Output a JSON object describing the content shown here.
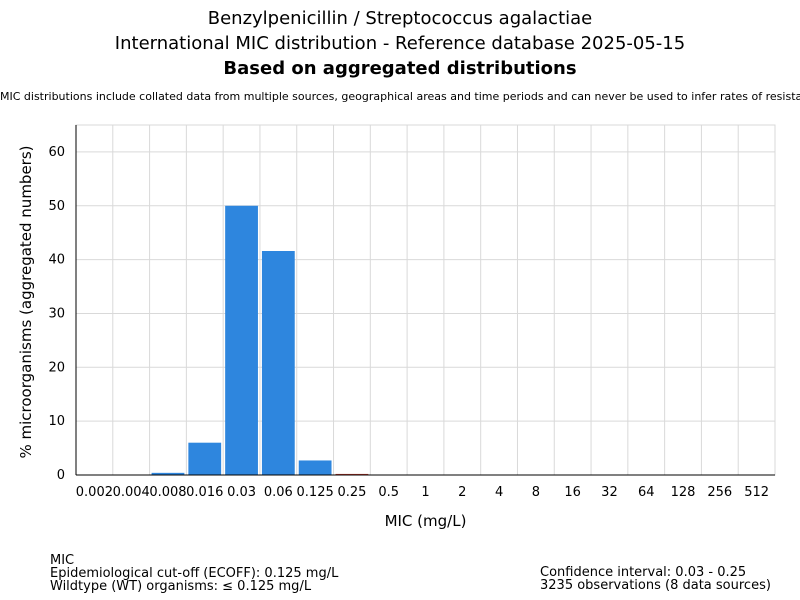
{
  "header": {
    "title_line1": "Benzylpenicillin / Streptococcus agalactiae",
    "title_line2": "International MIC distribution - Reference database 2025-05-15",
    "title_line3": "Based on aggregated distributions",
    "note": "MIC distributions include collated data from multiple sources, geographical areas and time periods and can never be used to infer rates of resistance"
  },
  "footer": {
    "left": {
      "line1": "MIC",
      "line2": "Epidemiological cut-off (ECOFF): 0.125 mg/L",
      "line3": "Wildtype (WT) organisms: ≤ 0.125 mg/L"
    },
    "right": {
      "line1": "Confidence interval: 0.03 - 0.25",
      "line2": "3235 observations (8 data sources)"
    }
  },
  "chart_data": {
    "type": "bar",
    "xlabel": "MIC (mg/L)",
    "ylabel": "% microorganisms (aggregated numbers)",
    "categories": [
      "0.002",
      "0.004",
      "0.008",
      "0.016",
      "0.03",
      "0.06",
      "0.125",
      "0.25",
      "0.5",
      "1",
      "2",
      "4",
      "8",
      "16",
      "32",
      "64",
      "128",
      "256",
      "512"
    ],
    "values": [
      0,
      0,
      0.4,
      6.0,
      50.0,
      41.6,
      2.7,
      0.2,
      0,
      0,
      0,
      0,
      0,
      0,
      0,
      0,
      0,
      0,
      0
    ],
    "ylim": [
      0,
      65
    ],
    "yticks": [
      0,
      10,
      20,
      30,
      40,
      50,
      60
    ],
    "grid": true,
    "colors": {
      "wildtype": "#2e86de",
      "non_wildtype": "#c0392b",
      "grid": "#d9d9d9",
      "axis": "#000000"
    },
    "ecoff_category": "0.125"
  }
}
